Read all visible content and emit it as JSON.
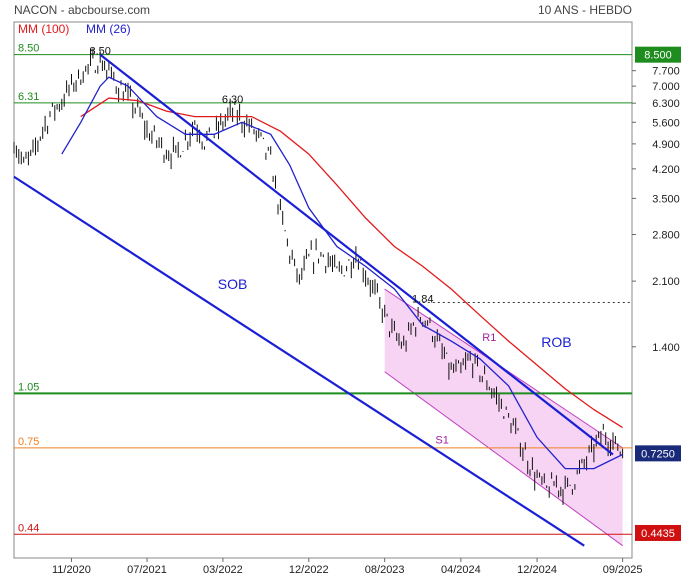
{
  "header": {
    "left_title": "NACON - abcbourse.com",
    "right_title": "10 ANS - HEBDO",
    "legend_mm100": "MM (100)",
    "legend_mm26": "MM (26)"
  },
  "colors": {
    "price": "#111111",
    "mm100": "#e31a1c",
    "mm26": "#2222cc",
    "trendline": "#1a1fd6",
    "channel_fill": "#f4c6f0",
    "channel_line": "#c040c0",
    "green": "#1e8c1e",
    "orange": "#f08020",
    "red": "#d01010"
  },
  "chart_data": {
    "type": "line",
    "title": "NACON - abcbourse.com",
    "subtitle": "10 ANS - HEBDO",
    "y_scale": "log",
    "ylim": [
      0.38,
      10.4
    ],
    "x_ticks": [
      {
        "label": "11/2020",
        "date": "2020-11-01"
      },
      {
        "label": "07/2021",
        "date": "2021-07-01"
      },
      {
        "label": "03/2022",
        "date": "2022-03-01"
      },
      {
        "label": "12/2022",
        "date": "2022-12-01"
      },
      {
        "label": "08/2023",
        "date": "2023-08-01"
      },
      {
        "label": "04/2024",
        "date": "2024-04-01"
      },
      {
        "label": "12/2024",
        "date": "2024-12-01"
      },
      {
        "label": "09/2025",
        "date": "2025-09-01"
      }
    ],
    "y_ticks": [
      "7.700",
      "7.000",
      "6.300",
      "5.600",
      "4.900",
      "4.200",
      "3.500",
      "2.800",
      "2.100",
      "1.400"
    ],
    "y_tick_values": [
      7.7,
      7.0,
      6.3,
      5.6,
      4.9,
      4.2,
      3.5,
      2.8,
      2.1,
      1.4
    ],
    "legend": [
      "MM (100)",
      "MM (26)"
    ],
    "levels": [
      {
        "name": "8.50",
        "value": 8.5,
        "color": "green",
        "badge": "8.500"
      },
      {
        "name": "6.31",
        "value": 6.31,
        "color": "green"
      },
      {
        "name": "1.05",
        "value": 1.05,
        "color": "green"
      },
      {
        "name": "0.75",
        "value": 0.75,
        "color": "orange"
      },
      {
        "name": "0.44",
        "value": 0.44,
        "color": "red"
      }
    ],
    "badges": [
      {
        "text": "8.500",
        "value": 8.5,
        "color": "green"
      },
      {
        "text": "0.7250",
        "value": 0.725,
        "color": "navy"
      },
      {
        "text": "0.4435",
        "value": 0.4435,
        "color": "red"
      }
    ],
    "annotations": [
      {
        "text": "8.50",
        "date": "2021-02-01",
        "value": 8.5
      },
      {
        "text": "6.30",
        "date": "2022-04-01",
        "value": 6.3
      },
      {
        "text": "1.84",
        "date": "2023-12-01",
        "value": 1.84
      },
      {
        "text": "SOB",
        "date": "2022-04-01",
        "value": 2.0
      },
      {
        "text": "ROB",
        "date": "2025-02-01",
        "value": 1.4
      },
      {
        "text": "R1",
        "date": "2024-07-01",
        "value": 1.45
      },
      {
        "text": "S1",
        "date": "2024-02-01",
        "value": 0.77
      }
    ],
    "dotted_level": {
      "value": 1.84,
      "from": "2023-12-01"
    },
    "trendlines": [
      {
        "name": "ROB",
        "points": [
          [
            "2021-02-01",
            8.5
          ],
          [
            "2025-08-01",
            0.72
          ]
        ]
      },
      {
        "name": "SOB",
        "points": [
          [
            "2020-05-01",
            4.0
          ],
          [
            "2025-05-01",
            0.41
          ]
        ]
      }
    ],
    "channel": {
      "upper": [
        [
          "2023-08-01",
          2.0
        ],
        [
          "2025-09-01",
          0.75
        ]
      ],
      "lower": [
        [
          "2023-08-01",
          1.2
        ],
        [
          "2025-09-01",
          0.41
        ]
      ]
    },
    "series": [
      {
        "name": "Cours",
        "points": [
          [
            "2020-05-01",
            5.0
          ],
          [
            "2020-06-01",
            4.3
          ],
          [
            "2020-07-01",
            4.6
          ],
          [
            "2020-08-01",
            5.4
          ],
          [
            "2020-09-01",
            6.0
          ],
          [
            "2020-10-01",
            6.4
          ],
          [
            "2020-11-01",
            7.0
          ],
          [
            "2020-12-01",
            7.5
          ],
          [
            "2021-01-01",
            8.0
          ],
          [
            "2021-02-01",
            8.2
          ],
          [
            "2021-03-01",
            7.6
          ],
          [
            "2021-04-01",
            7.0
          ],
          [
            "2021-05-01",
            6.5
          ],
          [
            "2021-06-01",
            6.0
          ],
          [
            "2021-07-01",
            5.3
          ],
          [
            "2021-08-01",
            5.0
          ],
          [
            "2021-09-01",
            4.7
          ],
          [
            "2021-10-01",
            4.6
          ],
          [
            "2021-11-01",
            5.0
          ],
          [
            "2021-12-01",
            5.6
          ],
          [
            "2022-01-01",
            5.0
          ],
          [
            "2022-02-01",
            5.2
          ],
          [
            "2022-03-01",
            5.6
          ],
          [
            "2022-04-01",
            6.0
          ],
          [
            "2022-05-01",
            5.7
          ],
          [
            "2022-06-01",
            5.4
          ],
          [
            "2022-07-01",
            5.0
          ],
          [
            "2022-08-01",
            4.4
          ],
          [
            "2022-09-01",
            3.2
          ],
          [
            "2022-10-01",
            2.5
          ],
          [
            "2022-11-01",
            2.1
          ],
          [
            "2022-12-01",
            2.4
          ],
          [
            "2023-01-01",
            2.5
          ],
          [
            "2023-02-01",
            2.4
          ],
          [
            "2023-03-01",
            2.2
          ],
          [
            "2023-04-01",
            2.3
          ],
          [
            "2023-05-01",
            2.5
          ],
          [
            "2023-06-01",
            2.2
          ],
          [
            "2023-07-01",
            1.95
          ],
          [
            "2023-08-01",
            1.7
          ],
          [
            "2023-09-01",
            1.5
          ],
          [
            "2023-10-01",
            1.4
          ],
          [
            "2023-11-01",
            1.6
          ],
          [
            "2023-12-01",
            1.7
          ],
          [
            "2024-01-01",
            1.55
          ],
          [
            "2024-02-01",
            1.35
          ],
          [
            "2024-03-01",
            1.2
          ],
          [
            "2024-04-01",
            1.2
          ],
          [
            "2024-05-01",
            1.3
          ],
          [
            "2024-06-01",
            1.2
          ],
          [
            "2024-07-01",
            1.1
          ],
          [
            "2024-08-01",
            1.0
          ],
          [
            "2024-09-01",
            0.9
          ],
          [
            "2024-10-01",
            0.8
          ],
          [
            "2024-11-01",
            0.7
          ],
          [
            "2024-12-01",
            0.62
          ],
          [
            "2025-01-01",
            0.58
          ],
          [
            "2025-02-01",
            0.6
          ],
          [
            "2025-03-01",
            0.58
          ],
          [
            "2025-04-01",
            0.62
          ],
          [
            "2025-05-01",
            0.68
          ],
          [
            "2025-06-01",
            0.75
          ],
          [
            "2025-07-01",
            0.82
          ],
          [
            "2025-08-01",
            0.78
          ],
          [
            "2025-09-01",
            0.725
          ]
        ]
      },
      {
        "name": "MM (100)",
        "points": [
          [
            "2020-12-01",
            5.8
          ],
          [
            "2021-03-01",
            6.5
          ],
          [
            "2021-06-01",
            6.4
          ],
          [
            "2021-09-01",
            6.0
          ],
          [
            "2021-12-01",
            5.8
          ],
          [
            "2022-03-01",
            5.8
          ],
          [
            "2022-06-01",
            5.8
          ],
          [
            "2022-09-01",
            5.3
          ],
          [
            "2022-12-01",
            4.6
          ],
          [
            "2023-03-01",
            3.8
          ],
          [
            "2023-06-01",
            3.1
          ],
          [
            "2023-09-01",
            2.6
          ],
          [
            "2023-12-01",
            2.3
          ],
          [
            "2024-03-01",
            2.0
          ],
          [
            "2024-06-01",
            1.7
          ],
          [
            "2024-09-01",
            1.45
          ],
          [
            "2024-12-01",
            1.25
          ],
          [
            "2025-03-01",
            1.08
          ],
          [
            "2025-06-01",
            0.95
          ],
          [
            "2025-09-01",
            0.85
          ]
        ]
      },
      {
        "name": "MM (26)",
        "points": [
          [
            "2020-10-01",
            4.6
          ],
          [
            "2020-12-01",
            5.6
          ],
          [
            "2021-02-01",
            7.0
          ],
          [
            "2021-03-01",
            7.4
          ],
          [
            "2021-05-01",
            7.0
          ],
          [
            "2021-08-01",
            5.8
          ],
          [
            "2021-11-01",
            5.2
          ],
          [
            "2022-02-01",
            5.2
          ],
          [
            "2022-05-01",
            5.6
          ],
          [
            "2022-08-01",
            5.2
          ],
          [
            "2022-10-01",
            4.3
          ],
          [
            "2022-12-01",
            3.3
          ],
          [
            "2023-03-01",
            2.6
          ],
          [
            "2023-06-01",
            2.3
          ],
          [
            "2023-09-01",
            2.0
          ],
          [
            "2023-12-01",
            1.6
          ],
          [
            "2024-03-01",
            1.45
          ],
          [
            "2024-06-01",
            1.3
          ],
          [
            "2024-09-01",
            1.1
          ],
          [
            "2024-12-01",
            0.8
          ],
          [
            "2025-03-01",
            0.66
          ],
          [
            "2025-06-01",
            0.66
          ],
          [
            "2025-09-01",
            0.72
          ]
        ]
      }
    ]
  }
}
